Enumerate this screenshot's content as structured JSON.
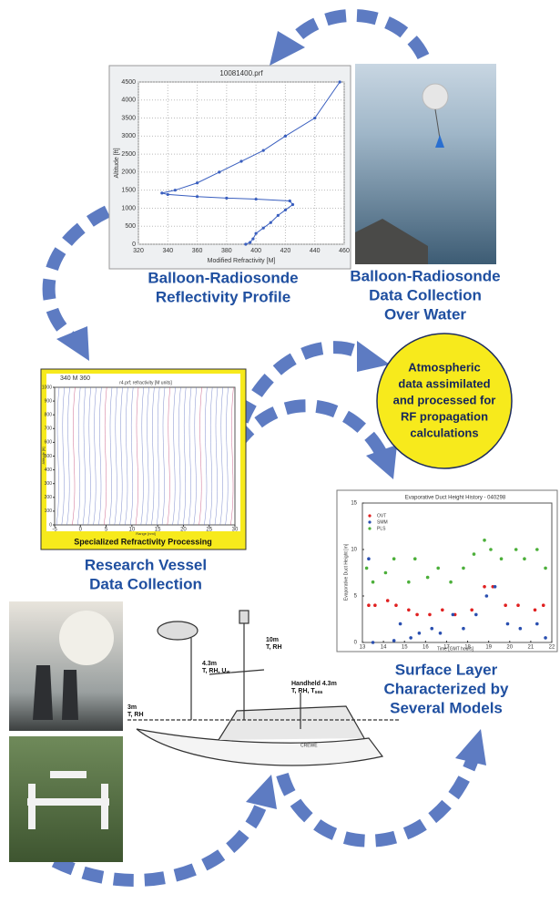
{
  "profile_chart": {
    "type": "line",
    "title": "10081400.prf",
    "x_label": "Modified Refractivity [M]",
    "y_label": "Altitude [ft]",
    "xlim": [
      320,
      460
    ],
    "ylim": [
      0,
      4500
    ],
    "xticks": [
      320,
      340,
      360,
      380,
      400,
      420,
      440,
      460
    ],
    "yticks": [
      0,
      500,
      1000,
      1500,
      2000,
      2500,
      3000,
      3500,
      4000,
      4500
    ],
    "grid": true,
    "color": "#3a5fbf",
    "x": [
      393,
      396,
      398,
      400,
      405,
      410,
      415,
      420,
      425,
      423,
      400,
      380,
      360,
      340,
      336,
      345,
      360,
      375,
      390,
      405,
      420,
      440,
      457
    ],
    "y": [
      0,
      50,
      150,
      300,
      450,
      600,
      800,
      950,
      1100,
      1200,
      1250,
      1280,
      1320,
      1380,
      1420,
      1500,
      1700,
      2000,
      2300,
      2600,
      3000,
      3500,
      4500
    ]
  },
  "refractivity_chart": {
    "title": "r4.prf; refractivity [M units]",
    "header": "340   M   360",
    "x_label": "Range [nmi]",
    "y_label": "Altitude [ft]",
    "xlim": [
      -5,
      30
    ],
    "ylim": [
      0,
      1000
    ],
    "xticks": [
      -5,
      0,
      5,
      10,
      15,
      20,
      25,
      30
    ],
    "yticks": [
      0,
      100,
      200,
      300,
      400,
      500,
      600,
      700,
      800,
      900,
      1000
    ],
    "footer": "Specialized Refractivity Processing"
  },
  "duct_chart": {
    "type": "scatter",
    "title": "Evaporative Duct Height History - 040298",
    "x_label": "Time [GMT hours]",
    "y_label": "Evaporative Duct Height [m]",
    "xlim": [
      13,
      22
    ],
    "ylim": [
      0,
      15
    ],
    "xticks": [
      13,
      14,
      15,
      16,
      17,
      18,
      19,
      20,
      21,
      22
    ],
    "yticks": [
      0,
      5,
      10,
      15
    ],
    "series": [
      {
        "name": "OVT",
        "color": "#e02020",
        "x": [
          13.3,
          13.6,
          14.2,
          14.6,
          15.2,
          15.6,
          16.2,
          16.8,
          17.4,
          18.2,
          18.8,
          19.2,
          19.8,
          20.4,
          21.2,
          21.6
        ],
        "values": [
          4,
          4,
          4.5,
          4,
          3.5,
          3,
          3,
          3.5,
          3,
          3.5,
          6,
          6,
          4,
          4,
          3.5,
          4
        ]
      },
      {
        "name": "SMM",
        "color": "#2a4fb0",
        "x": [
          13.3,
          13.5,
          14.5,
          14.8,
          15.3,
          15.7,
          16.3,
          16.7,
          17.3,
          17.8,
          18.4,
          18.9,
          19.3,
          19.9,
          20.5,
          21.3,
          21.7
        ],
        "values": [
          9,
          0,
          0.2,
          2,
          0.5,
          1,
          1.5,
          1,
          3,
          1.5,
          3,
          5,
          6,
          2,
          1.5,
          2,
          0.5
        ]
      },
      {
        "name": "PLS",
        "color": "#4caf3a",
        "x": [
          13.2,
          13.5,
          14.1,
          14.5,
          15.2,
          15.5,
          16.1,
          16.6,
          17.2,
          17.8,
          18.3,
          18.8,
          19.1,
          19.6,
          20.3,
          20.7,
          21.3,
          21.7
        ],
        "values": [
          8,
          6.5,
          7.5,
          9,
          6.5,
          9,
          7,
          8,
          6.5,
          8,
          9.5,
          11,
          10,
          9,
          10,
          9,
          10,
          8
        ]
      }
    ]
  },
  "captions": {
    "profile": [
      "Balloon-Radiosonde",
      "Reflectivity Profile"
    ],
    "water": [
      "Balloon-Radiosonde",
      "Data Collection",
      "Over Water"
    ],
    "vessel": [
      "Research Vessel",
      "Data Collection"
    ],
    "surface": [
      "Surface Layer",
      "Characterized by",
      "Several Models"
    ]
  },
  "bubble": [
    "Atmospheric",
    "data assimilated",
    "and processed for",
    "RF propagation",
    "calculations"
  ],
  "sensors": {
    "mast10": {
      "height": "10m",
      "vars": "T, RH"
    },
    "mast43": {
      "height": "4.3m",
      "vars": "T, RH, U",
      "sub": "w"
    },
    "handheld": {
      "height": "Handheld 4.3m",
      "vars": "T, RH, T",
      "sub": "sea"
    },
    "bow3": {
      "height": "3m",
      "vars": "T, RH"
    },
    "hull": "CREWE"
  }
}
